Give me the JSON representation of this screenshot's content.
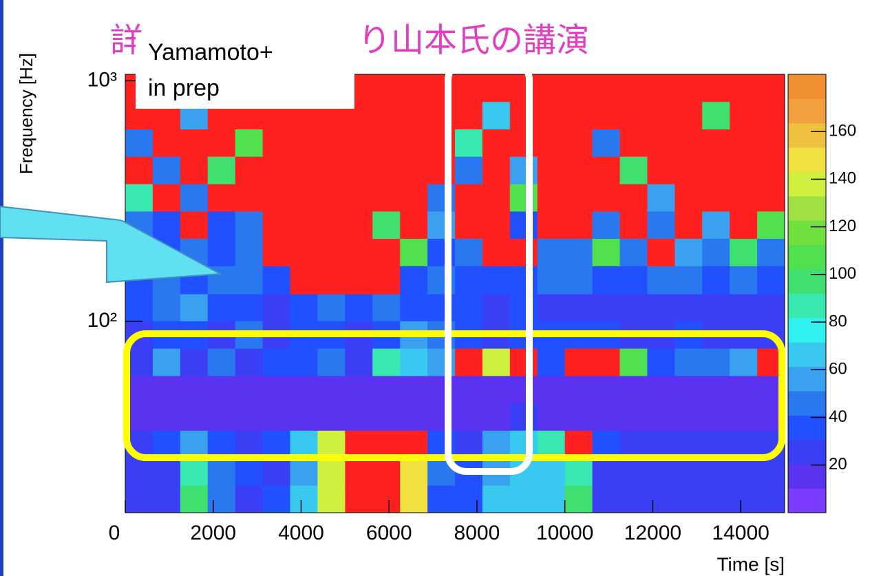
{
  "chart_data": {
    "type": "heatmap",
    "title_prefix": "詳",
    "title": "り山本氏の講演",
    "annotation": [
      "Yamamoto+",
      "in prep"
    ],
    "x_label": "Time [s]",
    "y_label": "Frequency [Hz]",
    "xlim": [
      0,
      15000
    ],
    "xticks": [
      0,
      2000,
      4000,
      6000,
      8000,
      10000,
      12000,
      14000
    ],
    "ylim": [
      16,
      1064
    ],
    "y_log": true,
    "yticks": [
      {
        "value": 100,
        "label": "10²"
      },
      {
        "value": 1000,
        "label": "10³"
      }
    ],
    "zlim": [
      0,
      184
    ],
    "zticks": [
      20,
      40,
      60,
      80,
      100,
      120,
      140,
      160
    ],
    "palette": [
      "#7b3cff",
      "#5a32f0",
      "#3a3ff5",
      "#2050ff",
      "#2a78f0",
      "#3aa0f0",
      "#38c8f0",
      "#30f0f0",
      "#38e8b0",
      "#40e070",
      "#50e050",
      "#70e040",
      "#a0e040",
      "#d0f040",
      "#f0e040",
      "#f0c040",
      "#f0a040",
      "#f09030"
    ],
    "overflow_color": "#ff2020",
    "xbins": [
      0,
      625,
      1250,
      1875,
      2500,
      3125,
      3750,
      4375,
      5000,
      5625,
      6250,
      6875,
      7500,
      8125,
      8750,
      9375,
      10000,
      10625,
      11250,
      11875,
      12500,
      13125,
      13750,
      14375,
      15000
    ],
    "ybins": [
      16,
      20.8,
      27,
      35.2,
      45.7,
      59.4,
      77.2,
      100.4,
      130,
      170,
      221,
      287,
      373,
      485,
      630,
      819,
      1064
    ],
    "z": [
      [
        30,
        30,
        95,
        50,
        30,
        35,
        65,
        140,
        200,
        200,
        150,
        40,
        35,
        65,
        65,
        70,
        100,
        30,
        30,
        30,
        30,
        30,
        30,
        30
      ],
      [
        30,
        30,
        90,
        45,
        35,
        30,
        60,
        140,
        200,
        200,
        150,
        45,
        35,
        60,
        70,
        65,
        90,
        30,
        30,
        30,
        30,
        30,
        30,
        25
      ],
      [
        30,
        35,
        60,
        40,
        30,
        40,
        70,
        140,
        200,
        200,
        200,
        40,
        30,
        60,
        65,
        90,
        200,
        40,
        30,
        30,
        30,
        30,
        30,
        30
      ],
      [
        15,
        15,
        15,
        15,
        18,
        15,
        15,
        15,
        15,
        15,
        15,
        15,
        15,
        15,
        25,
        15,
        15,
        15,
        15,
        15,
        15,
        15,
        15,
        15
      ],
      [
        15,
        15,
        15,
        18,
        15,
        18,
        15,
        15,
        15,
        15,
        15,
        15,
        15,
        15,
        15,
        20,
        15,
        15,
        15,
        15,
        15,
        15,
        15,
        18
      ],
      [
        30,
        55,
        30,
        45,
        30,
        40,
        35,
        45,
        30,
        90,
        70,
        60,
        200,
        140,
        200,
        40,
        200,
        200,
        110,
        40,
        50,
        45,
        55,
        200
      ],
      [
        30,
        40,
        35,
        30,
        45,
        30,
        35,
        40,
        30,
        35,
        60,
        50,
        35,
        30,
        40,
        35,
        35,
        40,
        30,
        30,
        35,
        30,
        30,
        30
      ],
      [
        40,
        45,
        60,
        35,
        40,
        30,
        35,
        45,
        40,
        50,
        40,
        35,
        35,
        30,
        40,
        30,
        25,
        25,
        25,
        25,
        25,
        25,
        25,
        25
      ],
      [
        35,
        50,
        40,
        45,
        50,
        40,
        200,
        200,
        200,
        200,
        35,
        45,
        40,
        35,
        40,
        50,
        45,
        35,
        40,
        45,
        50,
        40,
        45,
        35
      ],
      [
        40,
        35,
        50,
        40,
        45,
        200,
        200,
        200,
        200,
        200,
        110,
        40,
        45,
        200,
        200,
        50,
        45,
        110,
        50,
        200,
        60,
        45,
        100,
        50
      ],
      [
        45,
        40,
        200,
        35,
        50,
        200,
        200,
        200,
        200,
        100,
        200,
        60,
        200,
        200,
        40,
        200,
        200,
        45,
        200,
        50,
        200,
        55,
        200,
        110
      ],
      [
        90,
        200,
        45,
        200,
        200,
        200,
        200,
        200,
        200,
        200,
        200,
        50,
        200,
        200,
        110,
        200,
        200,
        200,
        200,
        60,
        200,
        200,
        200,
        200
      ],
      [
        200,
        50,
        200,
        100,
        200,
        200,
        200,
        200,
        200,
        200,
        200,
        200,
        45,
        200,
        60,
        200,
        200,
        200,
        100,
        200,
        200,
        200,
        200,
        200
      ],
      [
        50,
        200,
        200,
        200,
        110,
        200,
        200,
        200,
        200,
        200,
        200,
        200,
        90,
        200,
        200,
        200,
        200,
        45,
        200,
        200,
        200,
        200,
        200,
        200
      ],
      [
        200,
        200,
        60,
        200,
        200,
        200,
        200,
        200,
        200,
        200,
        200,
        200,
        200,
        70,
        200,
        200,
        200,
        200,
        200,
        200,
        200,
        100,
        200,
        200
      ],
      [
        200,
        200,
        200,
        200,
        200,
        200,
        200,
        200,
        200,
        200,
        200,
        200,
        200,
        200,
        200,
        200,
        200,
        200,
        200,
        200,
        200,
        200,
        200,
        200
      ]
    ]
  }
}
